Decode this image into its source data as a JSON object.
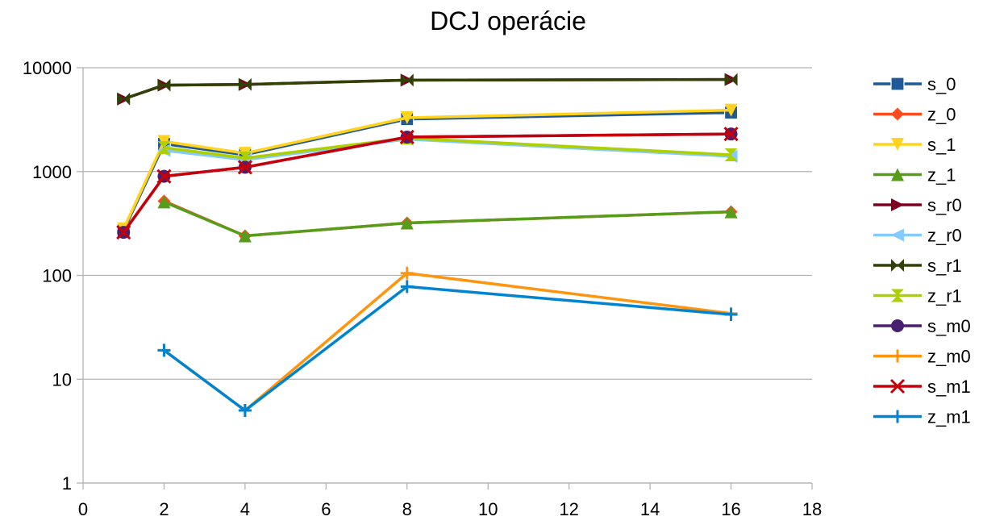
{
  "chart_data": {
    "type": "line",
    "title": "DCJ operácie",
    "xlabel": "",
    "ylabel": "",
    "xlim": [
      0,
      18
    ],
    "ylim": [
      1,
      10000
    ],
    "yscale": "log",
    "xticks": [
      "0",
      "2",
      "4",
      "6",
      "8",
      "10",
      "12",
      "14",
      "16",
      "18"
    ],
    "yticks": [
      "1",
      "10",
      "100",
      "1000",
      "10000"
    ],
    "grid": "horizontal",
    "legend_position": "right",
    "x": [
      1,
      2,
      4,
      8,
      16
    ],
    "series": [
      {
        "name": "s_0",
        "color": "#1f5a96",
        "marker": "square",
        "values": [
          270,
          1850,
          1450,
          3200,
          3700
        ]
      },
      {
        "name": "z_0",
        "color": "#ff4a1d",
        "marker": "diamond",
        "values": [
          null,
          520,
          240,
          320,
          410
        ]
      },
      {
        "name": "s_1",
        "color": "#ffd320",
        "marker": "tri-down",
        "values": [
          280,
          1950,
          1500,
          3300,
          3900
        ]
      },
      {
        "name": "z_1",
        "color": "#579d1c",
        "marker": "tri-up",
        "values": [
          null,
          510,
          240,
          320,
          410
        ]
      },
      {
        "name": "s_r0",
        "color": "#7e0021",
        "marker": "tri-right",
        "values": [
          5000,
          6800,
          6900,
          7600,
          7700
        ]
      },
      {
        "name": "z_r0",
        "color": "#83caff",
        "marker": "tri-left",
        "values": [
          null,
          1600,
          1300,
          2050,
          1400
        ]
      },
      {
        "name": "s_r1",
        "color": "#314004",
        "marker": "bowtie",
        "values": [
          5000,
          6800,
          6900,
          7600,
          7700
        ]
      },
      {
        "name": "z_r1",
        "color": "#aecf00",
        "marker": "hourglass",
        "values": [
          null,
          1700,
          1350,
          2100,
          1450
        ]
      },
      {
        "name": "s_m0",
        "color": "#4b1f6f",
        "marker": "circle",
        "values": [
          260,
          900,
          1100,
          2150,
          2300
        ]
      },
      {
        "name": "z_m0",
        "color": "#ff950e",
        "marker": "plus",
        "values": [
          null,
          19,
          5,
          105,
          43
        ]
      },
      {
        "name": "s_m1",
        "color": "#c5000b",
        "marker": "x",
        "values": [
          260,
          900,
          1100,
          2150,
          2300
        ]
      },
      {
        "name": "z_m1",
        "color": "#0084d1",
        "marker": "plus",
        "values": [
          null,
          19,
          5,
          78,
          42
        ]
      }
    ]
  }
}
